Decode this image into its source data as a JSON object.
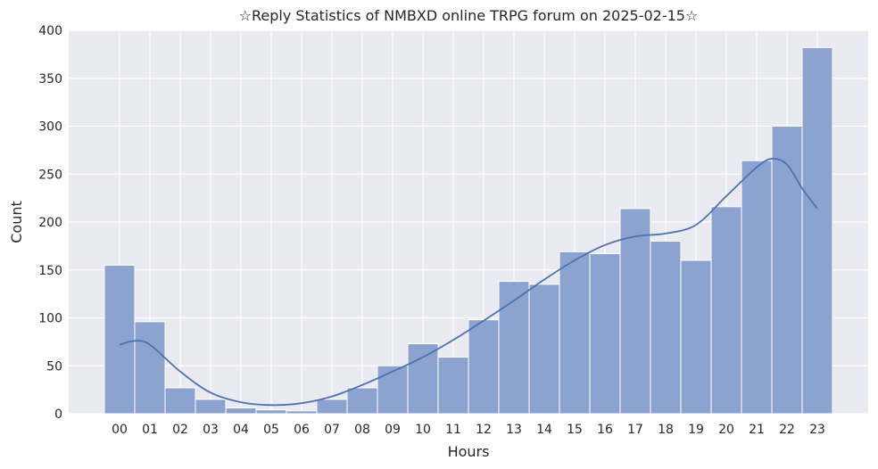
{
  "chart_data": {
    "type": "bar",
    "title": "☆Reply Statistics of NMBXD online TRPG forum on 2025-02-15☆",
    "xlabel": "Hours",
    "ylabel": "Count",
    "categories": [
      "00",
      "01",
      "02",
      "03",
      "04",
      "05",
      "06",
      "07",
      "08",
      "09",
      "10",
      "11",
      "12",
      "13",
      "14",
      "15",
      "16",
      "17",
      "18",
      "19",
      "20",
      "21",
      "22",
      "23"
    ],
    "values": [
      155,
      96,
      27,
      15,
      6,
      4,
      3,
      15,
      27,
      50,
      73,
      59,
      98,
      138,
      135,
      169,
      167,
      214,
      180,
      160,
      216,
      264,
      300,
      382
    ],
    "kde": [
      [
        0,
        72
      ],
      [
        0.5,
        76
      ],
      [
        1,
        72
      ],
      [
        2,
        44
      ],
      [
        3,
        22
      ],
      [
        4,
        12
      ],
      [
        5,
        9
      ],
      [
        6,
        11
      ],
      [
        7,
        18
      ],
      [
        8,
        30
      ],
      [
        9,
        44
      ],
      [
        10,
        59
      ],
      [
        11,
        77
      ],
      [
        12,
        97
      ],
      [
        13,
        118
      ],
      [
        14,
        140
      ],
      [
        15,
        160
      ],
      [
        16,
        176
      ],
      [
        17,
        185
      ],
      [
        18,
        188
      ],
      [
        19,
        197
      ],
      [
        20,
        227
      ],
      [
        21,
        257
      ],
      [
        21.5,
        266
      ],
      [
        22,
        260
      ],
      [
        22.5,
        235
      ],
      [
        23,
        214
      ]
    ],
    "yticks": [
      0,
      50,
      100,
      150,
      200,
      250,
      300,
      350,
      400
    ],
    "ylim": [
      0,
      400
    ],
    "grid": true,
    "colors": {
      "bar": "#8da3cf",
      "bar_edge": "#ffffff",
      "kde": "#4c72b0",
      "background": "#eaeaf2",
      "grid": "#ffffff"
    }
  }
}
